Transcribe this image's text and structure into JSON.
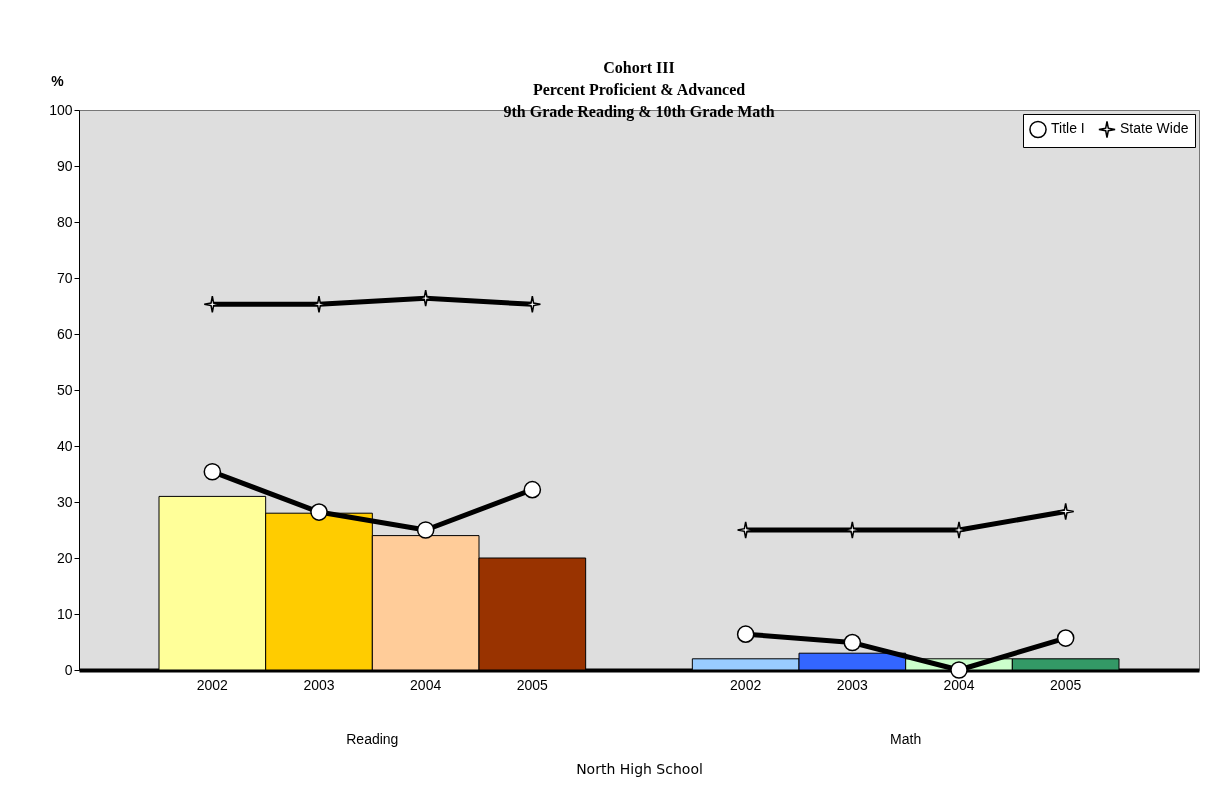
{
  "chart_data": {
    "type": "bar",
    "title": [
      "Cohort III",
      "Percent Proficient & Advanced",
      "9th Grade Reading & 10th Grade Math"
    ],
    "ylabel": "%",
    "xlabel": "North High School",
    "categories": [
      "2002",
      "2003",
      "2004",
      "2005",
      null,
      "2002",
      "2003",
      "2004",
      "2005"
    ],
    "values": [
      31,
      28,
      24,
      20,
      null,
      2,
      3,
      2,
      2
    ],
    "colors": [
      "#ffff99",
      "#ffcc00",
      "#ffcc99",
      "#993300",
      null,
      "#99ccff",
      "#3366ff",
      "#ccffcc",
      "#339966"
    ],
    "series": [
      {
        "name": "Title I",
        "type": "line",
        "color": "#000000",
        "marker": "circle",
        "values": [
          35.4,
          28.2,
          25.0,
          32.2,
          null,
          6.4,
          4.9,
          0,
          5.7
        ]
      },
      {
        "name": "State Wide",
        "type": "line",
        "color": "#000000",
        "marker": "star",
        "values": [
          65.3,
          65.3,
          66.4,
          65.3,
          null,
          25.0,
          25.0,
          25.0,
          28.3
        ]
      }
    ],
    "annotations": [
      "Reading",
      "Math"
    ],
    "ylim": [
      0,
      100
    ],
    "yticks": [
      0,
      10,
      20,
      30,
      40,
      50,
      60,
      70,
      80,
      90,
      100
    ],
    "grid": false,
    "legend": "top right"
  }
}
